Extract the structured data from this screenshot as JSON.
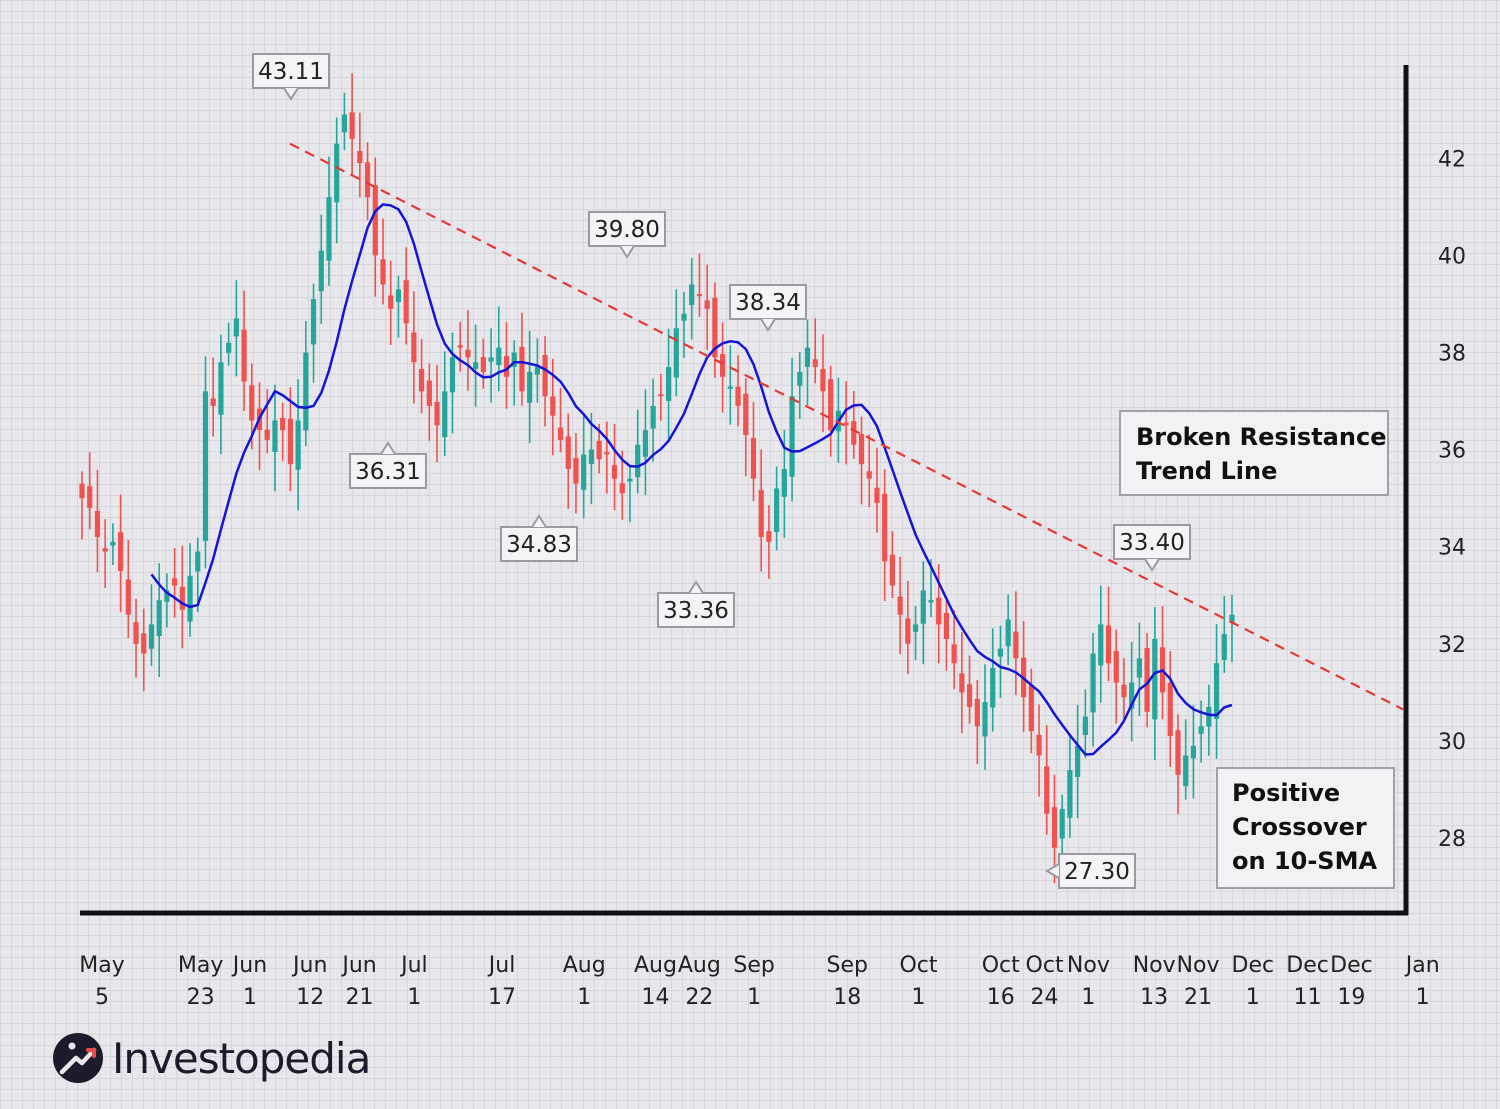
{
  "chart_data": {
    "type": "candlestick",
    "title": "",
    "xlabel": "",
    "ylabel": "",
    "ylim": [
      26,
      43.5
    ],
    "y_ticks": [
      28,
      30,
      32,
      34,
      36,
      38,
      40,
      42
    ],
    "x_ticks": [
      {
        "top": "May",
        "bottom": "5",
        "day": 0
      },
      {
        "top": "May",
        "bottom": "23",
        "day": 18
      },
      {
        "top": "Jun",
        "bottom": "1",
        "day": 27
      },
      {
        "top": "Jun",
        "bottom": "12",
        "day": 38
      },
      {
        "top": "Jun",
        "bottom": "21",
        "day": 47
      },
      {
        "top": "Jul",
        "bottom": "1",
        "day": 57
      },
      {
        "top": "Jul",
        "bottom": "17",
        "day": 73
      },
      {
        "top": "Aug",
        "bottom": "1",
        "day": 88
      },
      {
        "top": "Aug",
        "bottom": "14",
        "day": 101
      },
      {
        "top": "Aug",
        "bottom": "22",
        "day": 109
      },
      {
        "top": "Sep",
        "bottom": "1",
        "day": 119
      },
      {
        "top": "Sep",
        "bottom": "18",
        "day": 136
      },
      {
        "top": "Oct",
        "bottom": "1",
        "day": 149
      },
      {
        "top": "Oct",
        "bottom": "16",
        "day": 164
      },
      {
        "top": "Oct",
        "bottom": "24",
        "day": 172
      },
      {
        "top": "Nov",
        "bottom": "1",
        "day": 180
      },
      {
        "top": "Nov",
        "bottom": "13",
        "day": 192
      },
      {
        "top": "Nov",
        "bottom": "21",
        "day": 200
      },
      {
        "top": "Dec",
        "bottom": "1",
        "day": 210
      },
      {
        "top": "Dec",
        "bottom": "11",
        "day": 220
      },
      {
        "top": "Dec",
        "bottom": "19",
        "day": 228
      },
      {
        "top": "Jan",
        "bottom": "1",
        "day": 241
      }
    ],
    "candle_close": [
      35.0,
      34.8,
      34.2,
      33.9,
      34.1,
      33.5,
      32.6,
      32.0,
      31.8,
      32.4,
      32.9,
      33.1,
      33.2,
      32.7,
      33.4,
      33.9,
      37.2,
      36.9,
      37.8,
      38.2,
      38.7,
      37.4,
      36.6,
      36.4,
      36.2,
      36.6,
      36.4,
      35.7,
      36.6,
      38.0,
      39.1,
      40.1,
      41.2,
      42.3,
      42.9,
      42.4,
      41.9,
      41.2,
      40.0,
      39.4,
      38.9,
      39.3,
      38.6,
      37.8,
      37.2,
      36.9,
      36.5,
      37.2,
      37.9,
      38.1,
      37.9,
      37.8,
      37.6,
      37.9,
      38.1,
      37.5,
      38.0,
      37.2,
      37.6,
      37.7,
      37.1,
      36.7,
      36.2,
      35.6,
      35.3,
      35.9,
      36.0,
      35.8,
      35.9,
      35.4,
      35.1,
      35.4,
      36.1,
      36.4,
      36.9,
      37.1,
      37.7,
      38.5,
      38.8,
      39.4,
      39.2,
      38.9,
      37.9,
      37.5,
      37.3,
      36.9,
      36.3,
      35.4,
      34.2,
      34.1,
      35.2,
      35.6,
      37.1,
      37.6,
      38.1,
      37.7,
      37.2,
      36.4,
      36.8,
      36.5,
      36.1,
      35.7,
      35.4,
      34.9,
      33.7,
      33.2,
      32.6,
      32.0,
      32.4,
      33.1,
      32.9,
      32.4,
      32.1,
      31.6,
      31.0,
      30.7,
      30.3,
      30.8,
      31.5,
      31.9,
      32.5,
      31.7,
      30.9,
      30.2,
      29.7,
      28.5,
      27.8,
      28.6,
      29.4,
      29.9,
      30.5,
      31.8,
      32.4,
      31.6,
      31.2,
      30.9,
      31.2,
      31.7,
      30.6,
      32.1,
      31.0,
      30.1,
      29.3,
      29.7,
      29.9,
      30.3,
      30.7,
      31.6,
      32.2,
      32.6
    ]
  },
  "callouts": [
    {
      "label": "43.11",
      "pointer": "down"
    },
    {
      "label": "39.80",
      "pointer": "down"
    },
    {
      "label": "38.34",
      "pointer": "down"
    },
    {
      "label": "36.31",
      "pointer": "up"
    },
    {
      "label": "34.83",
      "pointer": "up"
    },
    {
      "label": "33.36",
      "pointer": "up"
    },
    {
      "label": "33.40",
      "pointer": "down"
    },
    {
      "label": "27.30",
      "pointer": "left"
    }
  ],
  "notes": {
    "broken_resistance": [
      "Broken Resistance",
      "Trend Line"
    ],
    "positive_crossover": [
      "Positive",
      "Crossover",
      "on 10-SMA"
    ]
  },
  "series_colors": {
    "up_candle": "#26a69a",
    "down_candle": "#ef5350",
    "sma": "#1515d6",
    "trend_line": "#e53935"
  },
  "logo": {
    "text": "Investopedia"
  }
}
